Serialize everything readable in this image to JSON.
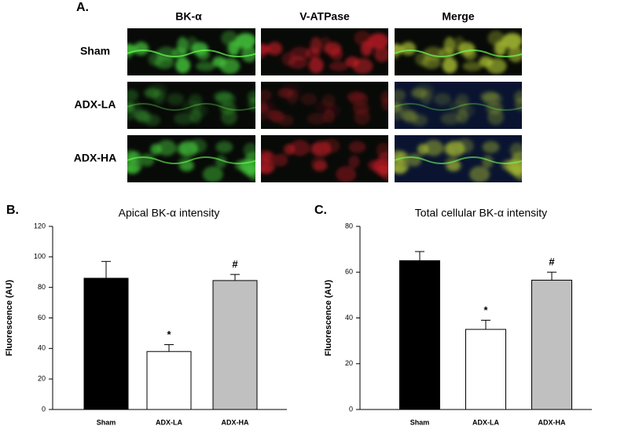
{
  "panel_a": {
    "label": "A.",
    "columns": [
      "BK-α",
      "V-ATPase",
      "Merge"
    ],
    "rows": [
      "Sham",
      "ADX-LA",
      "ADX-HA"
    ]
  },
  "chart_data": [
    {
      "type": "bar",
      "panel_label": "B.",
      "title": "Apical BK-α intensity",
      "ylabel": "Fluorescence (AU)",
      "categories": [
        "Sham",
        "ADX-LA",
        "ADX-HA"
      ],
      "values": [
        86,
        38,
        84.5
      ],
      "errors": [
        11,
        4.5,
        4
      ],
      "colors": [
        "#000000",
        "#ffffff",
        "#c0c0c0"
      ],
      "annotations": [
        null,
        "*",
        "#"
      ],
      "ylim": [
        0,
        120
      ],
      "yticks": [
        0,
        20,
        40,
        60,
        80,
        100,
        120
      ]
    },
    {
      "type": "bar",
      "panel_label": "C.",
      "title": "Total cellular BK-α intensity",
      "ylabel": "Fluorescence (AU)",
      "categories": [
        "Sham",
        "ADX-LA",
        "ADX-HA"
      ],
      "values": [
        65,
        35,
        56.5
      ],
      "errors": [
        4,
        4,
        3.5
      ],
      "colors": [
        "#000000",
        "#ffffff",
        "#c0c0c0"
      ],
      "annotations": [
        null,
        "*",
        "#"
      ],
      "ylim": [
        0,
        80
      ],
      "yticks": [
        0,
        20,
        40,
        60,
        80
      ]
    }
  ]
}
